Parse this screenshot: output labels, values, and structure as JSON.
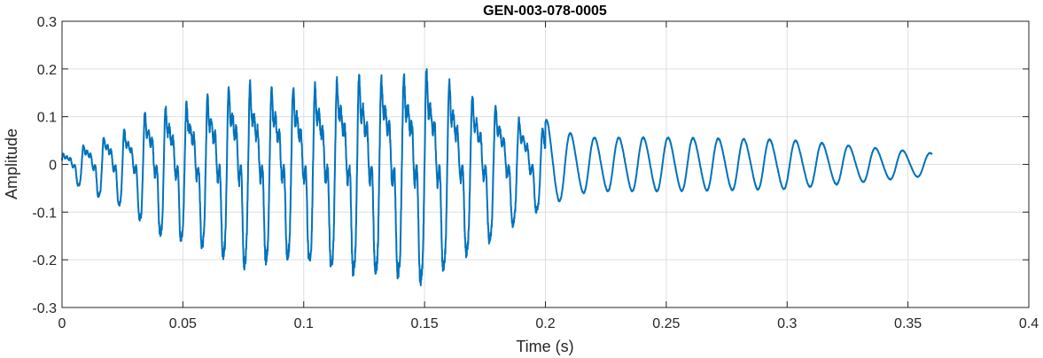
{
  "chart_data": {
    "type": "line",
    "title": "GEN-003-078-0005",
    "xlabel": "Time (s)",
    "ylabel": "Amplitude",
    "xlim": [
      0,
      0.4
    ],
    "ylim": [
      -0.3,
      0.3
    ],
    "xticks": [
      0,
      0.05,
      0.1,
      0.15,
      0.2,
      0.25,
      0.3,
      0.35,
      0.4
    ],
    "xtick_labels": [
      "0",
      "0.05",
      "0.1",
      "0.15",
      "0.2",
      "0.25",
      "0.3",
      "0.35",
      "0.4"
    ],
    "yticks": [
      -0.3,
      -0.2,
      -0.1,
      0,
      0.1,
      0.2,
      0.3
    ],
    "ytick_labels": [
      "-0.3",
      "-0.2",
      "-0.1",
      "0",
      "0.1",
      "0.2",
      "0.3"
    ],
    "grid": true,
    "line_color": "#0072BD",
    "signal": {
      "duration": 0.36,
      "envelope": [
        [
          0.0,
          0.03
        ],
        [
          0.01,
          0.06
        ],
        [
          0.02,
          0.09
        ],
        [
          0.03,
          0.11
        ],
        [
          0.035,
          0.16
        ],
        [
          0.05,
          0.18
        ],
        [
          0.06,
          0.2
        ],
        [
          0.075,
          0.24
        ],
        [
          0.09,
          0.22
        ],
        [
          0.1,
          0.23
        ],
        [
          0.115,
          0.25
        ],
        [
          0.125,
          0.26
        ],
        [
          0.135,
          0.26
        ],
        [
          0.145,
          0.27
        ],
        [
          0.15,
          0.28
        ],
        [
          0.165,
          0.22
        ],
        [
          0.18,
          0.17
        ],
        [
          0.19,
          0.13
        ],
        [
          0.2,
          0.1
        ],
        [
          0.21,
          0.07
        ],
        [
          0.22,
          0.06
        ],
        [
          0.25,
          0.06
        ],
        [
          0.3,
          0.055
        ],
        [
          0.34,
          0.035
        ],
        [
          0.36,
          0.025
        ]
      ]
    }
  }
}
